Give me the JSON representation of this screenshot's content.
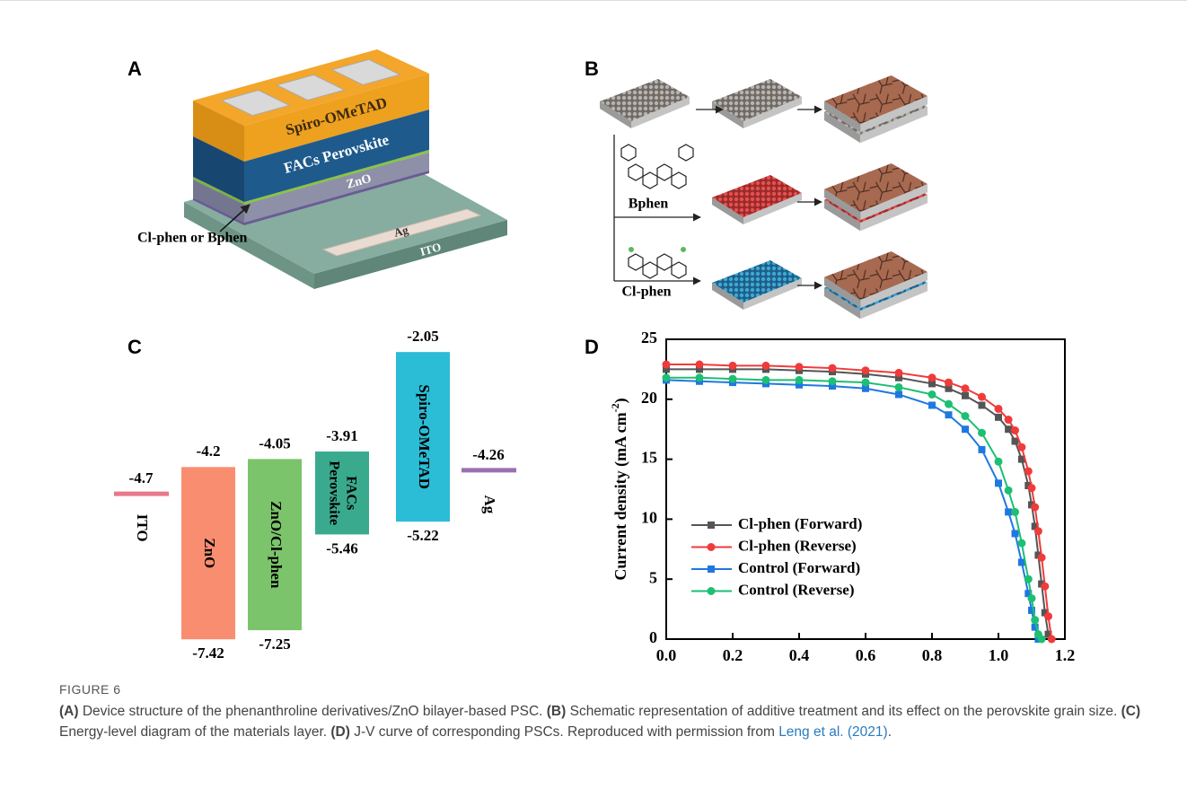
{
  "panels": {
    "A": {
      "letter": "A",
      "labels": {
        "spiro": "Spiro-OMeTAD",
        "perovskite": "FACs Perovskite",
        "zno": "ZnO",
        "ag": "Ag",
        "ito": "ITO",
        "interlayer": "Cl-phen or Bphen"
      }
    },
    "B": {
      "letter": "B",
      "labels": [
        "Bphen",
        "Cl-phen"
      ]
    },
    "C": {
      "letter": "C",
      "layers": [
        {
          "name": "ITO",
          "level": -4.7,
          "color": "#e8788a"
        },
        {
          "name": "ZnO",
          "top": -4.2,
          "bottom": -7.42,
          "color": "#f88e6f"
        },
        {
          "name": "ZnO/Cl-phen",
          "top": -4.05,
          "bottom": -7.25,
          "color": "#7cc46b"
        },
        {
          "name": [
            "FACs",
            "Perovskite"
          ],
          "top": -3.91,
          "bottom": -5.46,
          "color": "#3aaa8e"
        },
        {
          "name": "Spiro-OMeTAD",
          "top": -2.05,
          "bottom": -5.22,
          "color": "#2bbcd6"
        },
        {
          "name": "Ag",
          "level": -4.26,
          "color": "#9b6fb2"
        }
      ]
    },
    "D": {
      "letter": "D"
    }
  },
  "chart_data": {
    "type": "line",
    "x": [
      0,
      0.1,
      0.2,
      0.3,
      0.4,
      0.5,
      0.6,
      0.7,
      0.8,
      0.85,
      0.9,
      0.95,
      1.0,
      1.03,
      1.05,
      1.07,
      1.09,
      1.1,
      1.11,
      1.12,
      1.13,
      1.14,
      1.15,
      1.16
    ],
    "series": [
      {
        "name": "Cl-phen (Forward)",
        "color": "#555555",
        "marker": "square",
        "values": [
          22.5,
          22.5,
          22.5,
          22.5,
          22.4,
          22.3,
          22.1,
          21.8,
          21.3,
          20.9,
          20.3,
          19.5,
          18.5,
          17.5,
          16.5,
          15.0,
          12.8,
          11.2,
          9.4,
          7.0,
          4.6,
          2.2,
          0.4,
          null
        ]
      },
      {
        "name": "Cl-phen (Reverse)",
        "color": "#f03b3b",
        "marker": "circle",
        "values": [
          22.9,
          22.9,
          22.8,
          22.8,
          22.7,
          22.6,
          22.4,
          22.2,
          21.8,
          21.4,
          20.9,
          20.2,
          19.2,
          18.3,
          17.4,
          16.0,
          14.0,
          12.6,
          11.0,
          9.0,
          6.8,
          4.4,
          1.9,
          0
        ]
      },
      {
        "name": "Control (Forward)",
        "color": "#1f78e0",
        "marker": "square",
        "values": [
          21.6,
          21.5,
          21.4,
          21.3,
          21.2,
          21.1,
          20.9,
          20.4,
          19.5,
          18.7,
          17.5,
          15.8,
          13.0,
          10.6,
          8.8,
          6.4,
          3.8,
          2.4,
          1.0,
          0,
          null,
          null,
          null,
          null
        ]
      },
      {
        "name": "Control (Reverse)",
        "color": "#1dbf73",
        "marker": "circle",
        "values": [
          21.8,
          21.8,
          21.7,
          21.6,
          21.6,
          21.5,
          21.4,
          21.0,
          20.4,
          19.6,
          18.6,
          17.2,
          14.8,
          12.4,
          10.6,
          8.0,
          5.0,
          3.4,
          1.6,
          0.4,
          0,
          null,
          null,
          null
        ]
      }
    ],
    "xlim": [
      0,
      1.2
    ],
    "ylim": [
      0,
      25
    ],
    "xticks": [
      {
        "value": 0,
        "label": "0.0"
      },
      0.2,
      0.4,
      0.6,
      0.8,
      {
        "value": 1,
        "label": "1.0"
      },
      1.2
    ],
    "yticks": [
      0,
      5,
      10,
      15,
      20,
      25
    ],
    "y_label": "Current density (mA cm",
    "y_label_sup": "-2",
    "y_label_end": ")",
    "legend_position": "lower left"
  },
  "caption": {
    "label": "FIGURE 6",
    "parts": [
      {
        "text": "(A)",
        "style": "bold"
      },
      {
        "text": " Device structure of the phenanthroline derivatives/ZnO bilayer-based PSC. ",
        "style": "plain"
      },
      {
        "text": "(B)",
        "style": "bold"
      },
      {
        "text": " Schematic representation of additive treatment and its effect on the perovskite grain size. ",
        "style": "plain"
      },
      {
        "text": "(C)",
        "style": "bold"
      },
      {
        "text": " Energy-level diagram of the materials layer. ",
        "style": "plain"
      },
      {
        "text": "(D)",
        "style": "bold"
      },
      {
        "text": " J-V curve of corresponding PSCs. Reproduced with permission from ",
        "style": "plain"
      },
      {
        "text": "Leng et al. (2021)",
        "style": "link"
      },
      {
        "text": ".",
        "style": "plain"
      }
    ]
  }
}
